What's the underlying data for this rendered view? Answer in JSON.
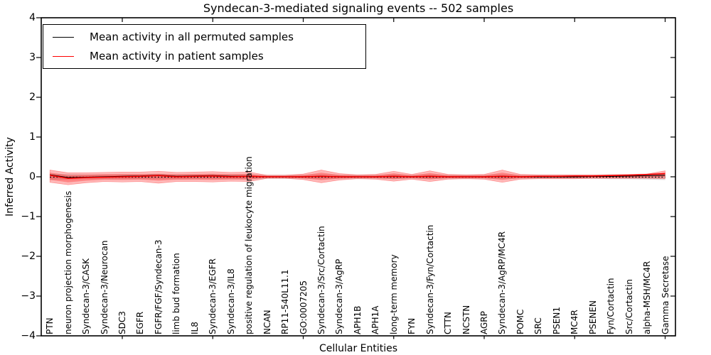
{
  "chart_data": {
    "type": "line",
    "title": "Syndecan-3-mediated signaling events -- 502 samples",
    "xlabel": "Cellular Entities",
    "ylabel": "Inferred Activity",
    "ylim": [
      -4,
      4
    ],
    "y_tick_values": [
      4,
      3,
      2,
      1,
      0,
      -1,
      -2,
      -3,
      -4
    ],
    "y_tick_labels": [
      "4",
      "3",
      "2",
      "1",
      "0",
      "−1",
      "−2",
      "−3",
      "−4"
    ],
    "x_major_tick_positions": [
      5,
      10,
      15,
      20,
      25,
      30,
      35
    ],
    "grid": false,
    "legend_position": "upper left",
    "zero_line": {
      "y": 0,
      "style": "dotted",
      "color": "#000000"
    },
    "categories": [
      "PTN",
      "neuron projection morphogenesis",
      "Syndecan-3/CASK",
      "Syndecan-3/Neurocan",
      "SDC3",
      "EGFR",
      "FGFR/FGF/Syndecan-3",
      "limb bud formation",
      "IL8",
      "Syndecan-3/EGFR",
      "Syndecan-3/IL8",
      "positive regulation of leukocyte migration",
      "NCAN",
      "RP11-540L11.1",
      "GO:0007205",
      "Syndecan-3/Src/Cortactin",
      "Syndecan-3/AgRP",
      "APH1B",
      "APH1A",
      "long-term memory",
      "FYN",
      "Syndecan-3/Fyn/Cortactin",
      "CTTN",
      "NCSTN",
      "AGRP",
      "Syndecan-3/AgRP/MC4R",
      "POMC",
      "SRC",
      "PSEN1",
      "MC4R",
      "PSENEN",
      "Fyn/Cortactin",
      "Src/Cortactin",
      "alpha-MSH/MC4R",
      "Gamma Secretase"
    ],
    "series": [
      {
        "name": "Mean activity in all permuted samples",
        "color": "#000000",
        "values": [
          0.05,
          -0.02,
          -0.01,
          0.0,
          0.01,
          0.02,
          0.04,
          0.01,
          0.02,
          0.03,
          0.01,
          0.01,
          0.0,
          0.0,
          0.0,
          0.01,
          0.0,
          0.0,
          0.0,
          0.01,
          0.0,
          0.01,
          0.0,
          0.0,
          0.0,
          0.01,
          0.0,
          0.0,
          0.0,
          0.0,
          0.01,
          0.01,
          0.02,
          0.03,
          0.04
        ]
      },
      {
        "name": "Mean activity in patient samples",
        "color": "#ff0000",
        "values": [
          0.04,
          -0.04,
          -0.02,
          -0.01,
          0.0,
          0.01,
          0.03,
          0.0,
          0.01,
          0.02,
          0.0,
          0.01,
          0.0,
          0.0,
          0.0,
          0.01,
          0.0,
          0.0,
          0.0,
          0.01,
          0.0,
          0.01,
          0.0,
          0.0,
          0.0,
          0.01,
          0.0,
          0.01,
          0.01,
          0.02,
          0.02,
          0.03,
          0.04,
          0.06,
          0.08
        ]
      }
    ],
    "bands": [
      {
        "name": "Permuted samples activity range",
        "color": "#000000",
        "opacity": 0.13,
        "upper": [
          0.08,
          0.07,
          0.06,
          0.06,
          0.06,
          0.06,
          0.06,
          0.06,
          0.06,
          0.06,
          0.06,
          0.06,
          0.05,
          0.05,
          0.05,
          0.06,
          0.05,
          0.05,
          0.05,
          0.06,
          0.05,
          0.06,
          0.05,
          0.05,
          0.05,
          0.06,
          0.05,
          0.05,
          0.05,
          0.05,
          0.05,
          0.06,
          0.06,
          0.07,
          0.08
        ],
        "lower": [
          -0.08,
          -0.07,
          -0.06,
          -0.06,
          -0.06,
          -0.06,
          -0.06,
          -0.06,
          -0.06,
          -0.06,
          -0.06,
          -0.06,
          -0.05,
          -0.05,
          -0.05,
          -0.06,
          -0.05,
          -0.05,
          -0.05,
          -0.06,
          -0.05,
          -0.06,
          -0.05,
          -0.05,
          -0.05,
          -0.06,
          -0.05,
          -0.05,
          -0.05,
          -0.05,
          -0.05,
          -0.06,
          -0.06,
          -0.07,
          -0.08
        ]
      },
      {
        "name": "Patient samples activity range",
        "color": "#ff0000",
        "opacity": 0.28,
        "upper": [
          0.17,
          0.1,
          0.1,
          0.11,
          0.12,
          0.12,
          0.14,
          0.11,
          0.12,
          0.13,
          0.11,
          0.12,
          0.04,
          0.04,
          0.07,
          0.17,
          0.08,
          0.05,
          0.06,
          0.14,
          0.06,
          0.15,
          0.06,
          0.05,
          0.06,
          0.17,
          0.06,
          0.05,
          0.05,
          0.05,
          0.05,
          0.05,
          0.06,
          0.07,
          0.15
        ],
        "lower": [
          -0.14,
          -0.2,
          -0.15,
          -0.12,
          -0.13,
          -0.12,
          -0.16,
          -0.12,
          -0.12,
          -0.13,
          -0.11,
          -0.12,
          -0.04,
          -0.04,
          -0.07,
          -0.15,
          -0.08,
          -0.05,
          -0.06,
          -0.11,
          -0.06,
          -0.12,
          -0.06,
          -0.05,
          -0.06,
          -0.14,
          -0.06,
          -0.05,
          -0.05,
          -0.05,
          -0.04,
          -0.04,
          -0.04,
          -0.04,
          -0.05
        ]
      }
    ]
  }
}
